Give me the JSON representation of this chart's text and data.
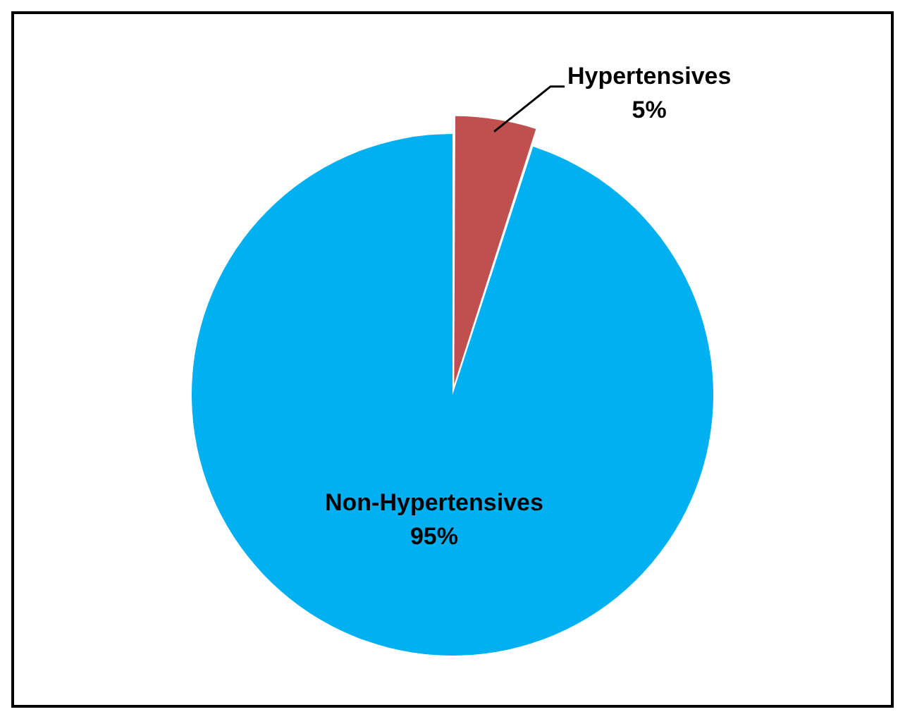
{
  "chart_data": {
    "type": "pie",
    "categories": [
      "Hypertensives",
      "Non-Hypertensives"
    ],
    "values": [
      5,
      95
    ],
    "colors": [
      "#c0504d",
      "#00b0f0"
    ],
    "value_labels": [
      "5%",
      "95%"
    ],
    "legend": false
  }
}
